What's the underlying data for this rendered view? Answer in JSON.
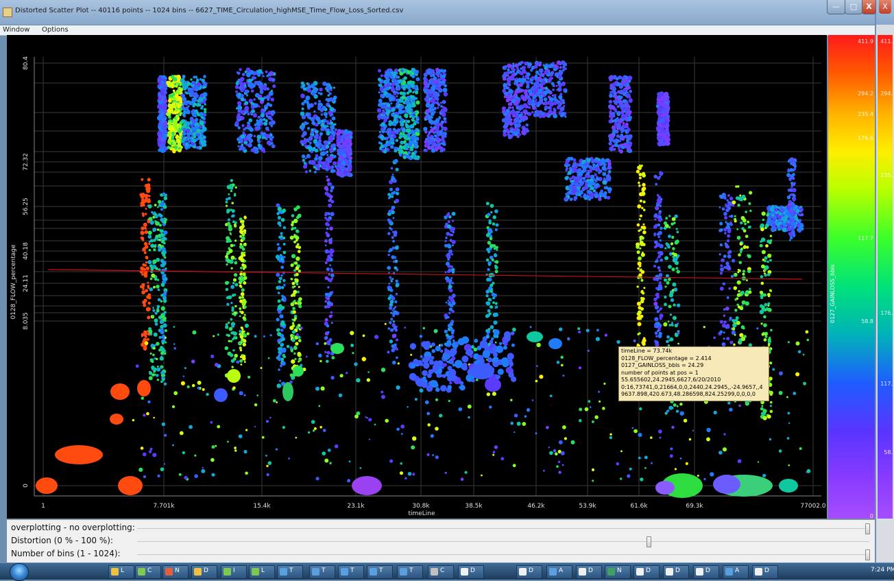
{
  "window": {
    "title": "Distorted Scatter Plot -- 40116 points -- 1024 bins -- 6627_TIME_Circulation_highMSE_Time_Flow_Loss_Sorted.csv",
    "minimize_label": "—",
    "maximize_label": "□",
    "close_label": "X"
  },
  "menu": {
    "items": [
      "Window",
      "Options"
    ]
  },
  "chart_data": {
    "type": "scatter",
    "xlabel": "timeLine",
    "ylabel": "0128_FLOW_percentage",
    "xticks": [
      "1",
      "7.701k",
      "15.4k",
      "23.1k",
      "30.8k",
      "38.5k",
      "46.2k",
      "53.9k",
      "61.6k",
      "69.3k",
      "77002.0"
    ],
    "yticks": [
      "0",
      "8.035",
      "24.11",
      "40.18",
      "56.25",
      "72.32",
      "80.4"
    ],
    "xlim": [
      1,
      77002
    ],
    "ylim": [
      0,
      80.4
    ],
    "distortion": "axes are distorted (non-uniform) by the distortion slider",
    "color_variable": "0127_GAINLOSS_bbls",
    "grid": true,
    "trend_line_color": "#d01010",
    "background": "#000000",
    "clusters": [
      {
        "x": 6.5,
        "y": 0,
        "color": "#ff4a10"
      },
      {
        "x": 6.5,
        "y": 1,
        "color": "#ff4a10"
      },
      {
        "x": 6.5,
        "y": 2.5,
        "color": "#ff4a10"
      },
      {
        "x": 23.1,
        "y": 0,
        "color": "#8a40f0"
      },
      {
        "x": 62.5,
        "y": 0,
        "color": "#2edc40"
      },
      {
        "x": 69.3,
        "y": 0,
        "color": "#3ad07a"
      },
      {
        "x": 7.7,
        "y": 78,
        "color": "#c8ff10"
      },
      {
        "x": 12.5,
        "y": 76,
        "color": "#3d6dff"
      },
      {
        "x": 61.4,
        "y": 66,
        "color": "#f5ff00"
      },
      {
        "x": 73.74,
        "y": 2.414,
        "color": "#1a80ff"
      }
    ]
  },
  "colorbar": {
    "label": "0127_GAINLOSS_bbls",
    "ticks": [
      "411.9",
      "294.2",
      "235.4",
      "176.6",
      "117.7",
      "58.8",
      "0"
    ]
  },
  "right_colorbar": {
    "ticks": [
      "411.",
      "294.",
      "235.",
      "176.",
      "117.",
      "58."
    ]
  },
  "tooltip": {
    "lines": [
      "timeLine = 73.74k",
      "0128_FLOW_percentage = 2.414",
      "0127_GAINLOSS_bbls = 24.29",
      "number of points at pos = 1",
      "55.655602,24.2945,6627,6/20/2010",
      "0:16,73741,0,21664,0,0,2440,24.2945,,-24.9657,,4",
      "9637.898,420.673,48.286598,824.25299,0,0,0,0"
    ]
  },
  "controls": {
    "overplotting": {
      "label": "overplotting - no overplotting:",
      "value": 1.0
    },
    "distortion": {
      "label": "Distortion (0 % - 100 %):",
      "value": 0.7
    },
    "bins": {
      "label": "Number of bins (1 - 1024):",
      "value": 1.0
    }
  },
  "taskbar": {
    "items": [
      "L",
      "C",
      "N",
      "D",
      "I",
      "L",
      "T",
      "T",
      "T",
      "T",
      "T",
      "C",
      "D",
      "D",
      "A",
      "D",
      "N",
      "D",
      "D",
      "D",
      "A",
      "D"
    ],
    "clock": "7:24 PM"
  }
}
